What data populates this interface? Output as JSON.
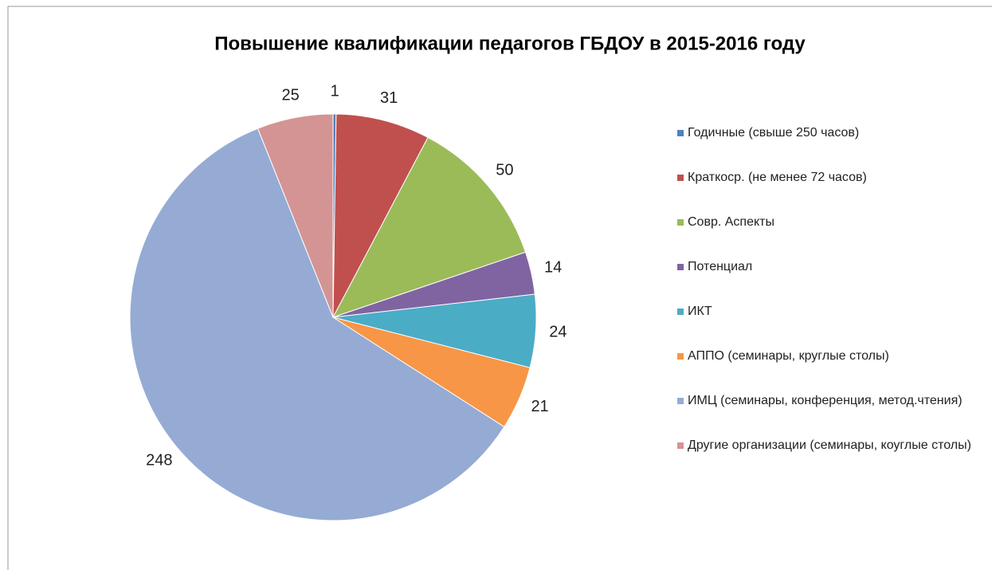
{
  "chart_data": {
    "type": "pie",
    "title": "Повышение квалификации педагогов ГБДОУ в 2015-2016 году",
    "categories": [
      "Годичные (свыше 250 часов)",
      "Краткоср. (не менее 72 часов)",
      "Совр. Аспекты",
      "Потенциал",
      "ИКТ",
      "АППО (семинары, круглые столы)",
      "ИМЦ (семинары, конференция, метод.чтения)",
      "Другие организации (семинары, коуглые столы)"
    ],
    "values": [
      1,
      31,
      50,
      14,
      24,
      21,
      248,
      25
    ],
    "colors": [
      "#4f81bd",
      "#c0504d",
      "#9bbb59",
      "#8064a2",
      "#4bacc6",
      "#f79646",
      "#95abd4",
      "#d49494"
    ],
    "legend": "right"
  }
}
